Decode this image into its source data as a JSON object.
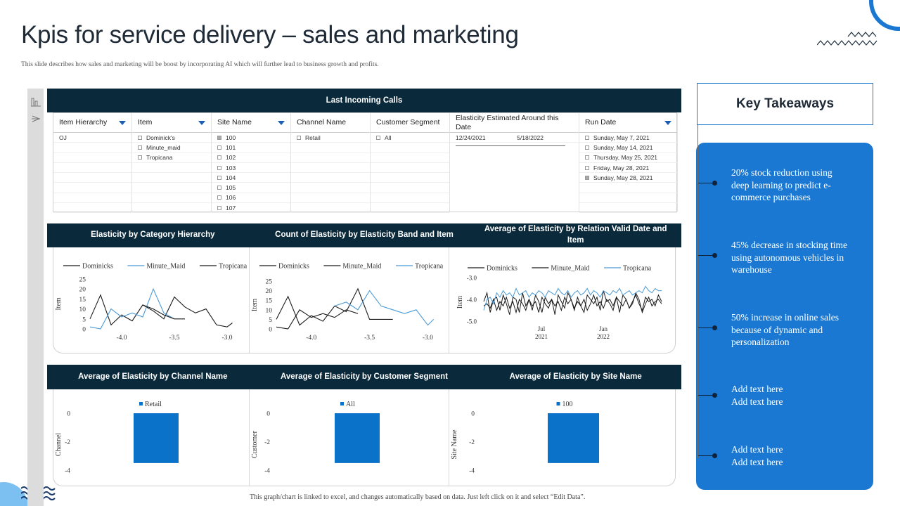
{
  "header": {
    "title": "Kpis for service delivery – sales and marketing",
    "subtitle": "This slide describes how sales and marketing will be boost by incorporating AI which will further lead to business growth and profits."
  },
  "filter_table": {
    "title": "Last Incoming Calls",
    "columns": [
      {
        "label": "Item  Hierarchy",
        "has_dropdown": true,
        "rows": [
          "OJ"
        ],
        "checked": []
      },
      {
        "label": "Item",
        "has_dropdown": true,
        "rows": [
          "Dominick's",
          "Minute_maid",
          "Tropicana"
        ],
        "checked": []
      },
      {
        "label": "Site Name",
        "has_dropdown": true,
        "rows": [
          "100",
          "101",
          "102",
          "103",
          "104",
          "105",
          "106",
          "107"
        ],
        "checked": [
          0
        ]
      },
      {
        "label": "Channel Name",
        "has_dropdown": false,
        "rows": [
          "Retail"
        ],
        "checked": []
      },
      {
        "label": "Customer Segment",
        "has_dropdown": false,
        "rows": [
          "All"
        ],
        "checked": []
      },
      {
        "label": "Elasticity Estimated Around this Date",
        "has_dropdown": false,
        "range": [
          "12/24/2021",
          "5/18/2022"
        ]
      },
      {
        "label": "Run Date",
        "has_dropdown": true,
        "rows": [
          "Sunday, May 7, 2021",
          "Sunday, May 14, 2021",
          "Thursday, May 25, 2021",
          "Friday, May 28, 2021",
          "Sunday, May 28, 2021"
        ],
        "checked": [
          4
        ]
      }
    ]
  },
  "section_titles": {
    "charts": [
      "Elasticity by Category Hierarchy",
      "Count of Elasticity by Elasticity Band and Item",
      "Average of Elasticity by Relation Valid Date and Item"
    ],
    "bars": [
      "Average of Elasticity by Channel Name",
      "Average of Elasticity by Customer Segment",
      "Average of Elasticity by Site Name"
    ]
  },
  "chart_data": [
    {
      "type": "line",
      "title": "Elasticity by Category Hierarchy",
      "ylabel": "Item",
      "x_ticks": [
        "-4.0",
        "-3.5",
        "-3.0"
      ],
      "y_ticks": [
        0,
        5,
        10,
        15,
        20,
        25
      ],
      "xlim": [
        -4.3,
        -2.9
      ],
      "ylim": [
        0,
        25
      ],
      "legend": "top",
      "series": [
        {
          "name": "Dominicks",
          "color": "#1a1a1a",
          "x": [
            -4.3,
            -4.2,
            -4.1,
            -4.0,
            -3.9,
            -3.8,
            -3.7,
            -3.6,
            -3.5,
            -3.4,
            -3.3,
            -3.2,
            -3.1,
            -3.0,
            -2.95
          ],
          "y": [
            5,
            17,
            2,
            7,
            4,
            12,
            9,
            5,
            16,
            11,
            8,
            10,
            2,
            1,
            3
          ]
        },
        {
          "name": "Minute_Maid",
          "color": "#4a9ad6",
          "x": [
            -4.3,
            -4.2,
            -4.1,
            -4.0,
            -3.9,
            -3.8,
            -3.7,
            -3.6,
            -3.5
          ],
          "y": [
            1,
            0,
            10,
            6,
            8,
            6,
            20,
            8,
            5
          ]
        },
        {
          "name": "Tropicana",
          "color": "#1a1a1a",
          "x": [
            -3.8,
            -3.7,
            -3.6,
            -3.5,
            -3.4
          ],
          "y": [
            12,
            10,
            7,
            5,
            5
          ]
        }
      ]
    },
    {
      "type": "line",
      "title": "Count of Elasticity by Elasticity Band and Item",
      "ylabel": "Item",
      "x_ticks": [
        "-4.0",
        "-3.5",
        "-3.0"
      ],
      "y_ticks": [
        0,
        5,
        10,
        15,
        20,
        25
      ],
      "xlim": [
        -4.3,
        -2.9
      ],
      "ylim": [
        0,
        25
      ],
      "legend": "top",
      "series": [
        {
          "name": "Dominicks",
          "color": "#1a1a1a",
          "x": [
            -4.3,
            -4.2,
            -4.1,
            -4.0,
            -3.9,
            -3.8,
            -3.7,
            -3.6,
            -3.5,
            -3.4,
            -3.3
          ],
          "y": [
            5,
            17,
            2,
            7,
            4,
            12,
            9,
            21,
            5,
            5,
            5
          ]
        },
        {
          "name": "Minute_Maid",
          "color": "#1a1a1a",
          "x": [
            -4.3,
            -4.2,
            -4.1,
            -4.0,
            -3.9,
            -3.8,
            -3.7,
            -3.6
          ],
          "y": [
            1,
            0,
            10,
            6,
            8,
            6,
            10,
            8
          ]
        },
        {
          "name": "Tropicana",
          "color": "#4a9ad6",
          "x": [
            -3.8,
            -3.7,
            -3.6,
            -3.5,
            -3.4,
            -3.3,
            -3.2,
            -3.1,
            -3.0,
            -2.95
          ],
          "y": [
            12,
            14,
            10,
            20,
            12,
            10,
            8,
            10,
            2,
            5
          ]
        }
      ]
    },
    {
      "type": "line",
      "title": "Average of Elasticity by Relation Valid Date and Item",
      "ylabel": "Item",
      "x_ticks": [
        "Jul 2021",
        "Jan 2022"
      ],
      "y_ticks": [
        -3.0,
        -4.0,
        -5.0
      ],
      "ylim": [
        -5.0,
        -3.0
      ],
      "legend": "top",
      "series": [
        {
          "name": "Dominicks",
          "color": "#1a1a1a",
          "y": [
            -4.1,
            -3.7,
            -4.6,
            -4.0,
            -3.9,
            -4.5,
            -3.8,
            -4.2,
            -4.7,
            -3.9,
            -4.0,
            -4.6,
            -3.7,
            -4.3,
            -4.0,
            -4.5,
            -3.8,
            -4.1,
            -4.6,
            -3.9,
            -4.2,
            -4.0,
            -4.7,
            -3.8,
            -4.1,
            -4.4,
            -3.7,
            -4.0,
            -4.5,
            -3.9,
            -4.3,
            -4.6,
            -3.8,
            -4.0,
            -4.2,
            -3.9,
            -4.5,
            -3.6,
            -4.1,
            -4.0,
            -4.3,
            -3.9,
            -4.6,
            -3.8,
            -4.0,
            -4.4,
            -4.1,
            -3.8,
            -4.2,
            -4.5,
            -3.9,
            -4.1,
            -4.0,
            -4.3,
            -3.8,
            -4.1
          ]
        },
        {
          "name": "Minute_Maid",
          "color": "#1a1a1a",
          "y": [
            -4.3,
            -4.2,
            -4.4,
            -4.0,
            -4.5,
            -4.1,
            -4.3,
            -3.9,
            -4.4,
            -4.1,
            -4.6,
            -4.0,
            -4.2,
            -4.5,
            -4.0,
            -4.3,
            -4.1,
            -4.6,
            -3.9,
            -4.2,
            -4.4,
            -4.0,
            -4.3,
            -4.1,
            -4.5,
            -3.9,
            -4.2,
            -4.0,
            -4.4,
            -4.1,
            -4.3,
            -4.0,
            -4.5,
            -4.2,
            -3.8,
            -4.3,
            -4.1,
            -4.4,
            -4.0,
            -4.2,
            -4.5,
            -3.9,
            -4.1,
            -4.3,
            -4.0,
            -4.4,
            -4.2,
            -3.7,
            -4.0,
            -4.6,
            -4.2,
            -3.9,
            -4.3,
            -4.1,
            -4.0,
            -4.2
          ]
        },
        {
          "name": "Tropicana",
          "color": "#4a9ad6",
          "y": [
            -4.5,
            -4.0,
            -3.9,
            -4.2,
            -3.7,
            -3.9,
            -3.6,
            -3.8,
            -3.7,
            -3.9,
            -3.5,
            -3.8,
            -3.7,
            -3.6,
            -3.9,
            -3.7,
            -3.8,
            -3.6,
            -3.7,
            -3.9,
            -3.6,
            -3.7,
            -3.8,
            -3.5,
            -3.7,
            -3.8,
            -3.6,
            -3.9,
            -3.7,
            -3.6,
            -3.8,
            -3.7,
            -3.5,
            -3.8,
            -3.6,
            -3.7,
            -3.9,
            -3.6,
            -3.7,
            -3.8,
            -3.6,
            -3.7,
            -3.5,
            -3.8,
            -3.7,
            -3.6,
            -3.8,
            -3.7,
            -3.6,
            -3.7,
            -3.4,
            -3.6,
            -3.7,
            -3.5,
            -3.6,
            -3.6
          ]
        }
      ]
    },
    {
      "type": "bar",
      "title": "Average of Elasticity by Channel Name",
      "ylabel": "Channel",
      "categories": [
        "Retail"
      ],
      "values": [
        -3.5
      ],
      "y_ticks": [
        0,
        -2,
        -4
      ],
      "ylim": [
        -4,
        0
      ],
      "color": "#0b72c9"
    },
    {
      "type": "bar",
      "title": "Average of Elasticity by Customer Segment",
      "ylabel": "Customer",
      "categories": [
        "All"
      ],
      "values": [
        -3.5
      ],
      "y_ticks": [
        0,
        -2,
        -4
      ],
      "ylim": [
        -4,
        0
      ],
      "color": "#0b72c9"
    },
    {
      "type": "bar",
      "title": "Average of Elasticity by Site Name",
      "ylabel": "Site Name",
      "categories": [
        "100"
      ],
      "values": [
        -3.5
      ],
      "y_ticks": [
        0,
        -2,
        -4
      ],
      "ylim": [
        -4,
        0
      ],
      "color": "#0b72c9"
    }
  ],
  "takeaways": {
    "title": "Key Takeaways",
    "items": [
      "20% stock reduction using deep learning to predict e-commerce purchases",
      "45% decrease in stocking time using autonomous vehicles in warehouse",
      "50% increase in online sales because of dynamic and personalization",
      "Add text here\nAdd text here",
      "Add text here\nAdd text here"
    ]
  },
  "footer": "This graph/chart is linked to excel,  and changes automatically based on data. Just left click on it and select “Edit Data”.",
  "colors": {
    "dark_band": "#0a2a3c",
    "accent": "#1a78d2",
    "bar": "#0b72c9",
    "series_blue": "#4a9ad6",
    "series_black": "#1a1a1a"
  }
}
